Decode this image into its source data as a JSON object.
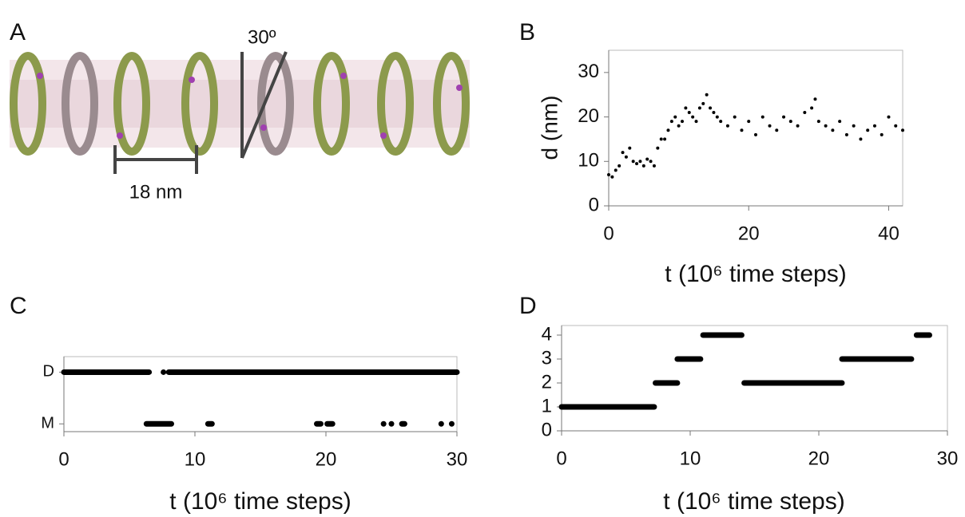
{
  "image_panel": {
    "panel": "A",
    "angle_label": "30º",
    "scale_label": "18 nm"
  },
  "chart_data": [
    {
      "type": "scatter",
      "panel": "B",
      "xlabel": "t (10⁶ time steps)",
      "ylabel": "d (nm)",
      "xlim": [
        0,
        42
      ],
      "xticks": [
        0,
        20,
        40
      ],
      "ylim": [
        0,
        35
      ],
      "yticks": [
        0,
        10,
        20,
        30
      ],
      "color": "#000000",
      "x": [
        0,
        0.5,
        1,
        1.5,
        2,
        2.5,
        3,
        3.5,
        4,
        4.5,
        5,
        5.5,
        6,
        6.5,
        7,
        7.5,
        8,
        8.5,
        9,
        9.5,
        10,
        10.5,
        11,
        11.5,
        12,
        12.5,
        13,
        13.5,
        14,
        14.5,
        15,
        15.5,
        16,
        17,
        18,
        19,
        20,
        21,
        22,
        23,
        24,
        25,
        26,
        27,
        28,
        29,
        29.5,
        30,
        31,
        32,
        33,
        34,
        35,
        36,
        37,
        38,
        39,
        40,
        41,
        42
      ],
      "values": [
        7,
        6.5,
        8,
        9,
        12,
        11,
        13,
        10,
        9.5,
        10,
        9,
        10.5,
        10,
        9,
        13,
        15,
        15,
        17,
        19,
        20,
        18,
        19,
        22,
        21,
        20,
        19,
        22,
        23,
        25,
        22,
        21,
        20,
        19,
        18,
        20,
        17,
        19,
        16,
        20,
        18,
        17,
        20,
        19,
        18,
        21,
        22,
        24,
        19,
        18,
        17,
        19,
        16,
        18,
        15,
        17,
        18,
        16,
        20,
        18,
        17
      ]
    },
    {
      "type": "segments",
      "panel": "C",
      "xlabel": "t (10⁶ time steps)",
      "xlim": [
        0,
        30
      ],
      "xticks": [
        0,
        10,
        20,
        30
      ],
      "ylim": [
        -0.15,
        1.3
      ],
      "yticks": [
        {
          "value": 1,
          "label": "D"
        },
        {
          "value": 0,
          "label": "M"
        }
      ],
      "color": "#000000",
      "segments": [
        {
          "x": [
            0,
            6.5
          ],
          "y": 1
        },
        {
          "x": [
            7.6,
            7.6
          ],
          "y": 1
        },
        {
          "x": [
            8,
            30
          ],
          "y": 1
        },
        {
          "x": [
            6.3,
            8.2
          ],
          "y": 0
        },
        {
          "x": [
            11,
            11.3
          ],
          "y": 0
        },
        {
          "x": [
            19.3,
            19.6
          ],
          "y": 0
        },
        {
          "x": [
            20.1,
            20.5
          ],
          "y": 0
        },
        {
          "x": [
            24.4,
            24.4
          ],
          "y": 0
        },
        {
          "x": [
            25,
            25
          ],
          "y": 0
        },
        {
          "x": [
            25.8,
            26
          ],
          "y": 0
        },
        {
          "x": [
            28.8,
            28.8
          ],
          "y": 0
        },
        {
          "x": [
            29.6,
            29.6
          ],
          "y": 0
        }
      ]
    },
    {
      "type": "segments",
      "panel": "D",
      "xlabel": "t (10⁶ time steps)",
      "xlim": [
        0,
        30
      ],
      "xticks": [
        0,
        10,
        20,
        30
      ],
      "ylim": [
        0,
        4.4
      ],
      "yticks": [
        0,
        1,
        2,
        3,
        4
      ],
      "color": "#000000",
      "segments": [
        {
          "x": [
            0,
            7.2
          ],
          "y": 1
        },
        {
          "x": [
            7.3,
            9
          ],
          "y": 2
        },
        {
          "x": [
            9,
            10.8
          ],
          "y": 3
        },
        {
          "x": [
            11,
            14
          ],
          "y": 4
        },
        {
          "x": [
            14.2,
            21.8
          ],
          "y": 2
        },
        {
          "x": [
            21.8,
            27.2
          ],
          "y": 3
        },
        {
          "x": [
            27.6,
            28.6
          ],
          "y": 4
        }
      ]
    }
  ]
}
